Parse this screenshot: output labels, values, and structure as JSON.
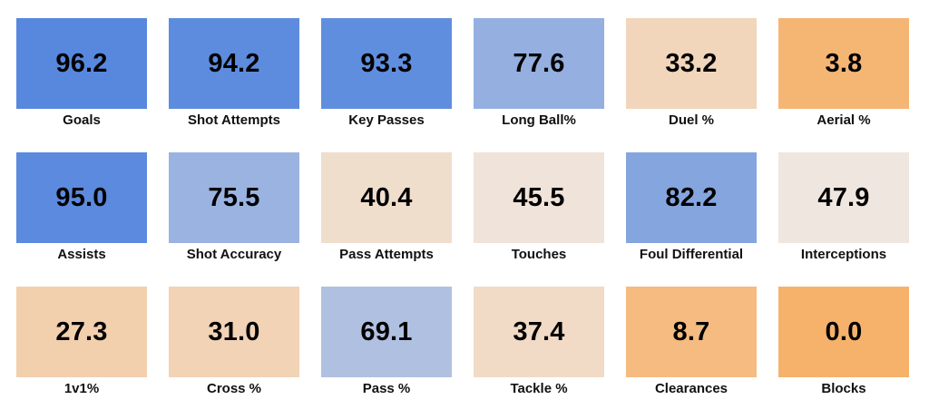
{
  "chart_data": {
    "type": "heatmap",
    "title": "",
    "columns": 6,
    "color_scale": {
      "low": "#f6b26b",
      "mid": "#efe8e4",
      "high": "#4a80dd"
    },
    "cells": [
      {
        "label": "Goals",
        "value": 96.2
      },
      {
        "label": "Shot Attempts",
        "value": 94.2
      },
      {
        "label": "Key Passes",
        "value": 93.3
      },
      {
        "label": "Long Ball%",
        "value": 77.6
      },
      {
        "label": "Duel %",
        "value": 33.2
      },
      {
        "label": "Aerial %",
        "value": 3.8
      },
      {
        "label": "Assists",
        "value": 95.0
      },
      {
        "label": "Shot Accuracy",
        "value": 75.5
      },
      {
        "label": "Pass Attempts",
        "value": 40.4
      },
      {
        "label": "Touches",
        "value": 45.5
      },
      {
        "label": "Foul Differential",
        "value": 82.2
      },
      {
        "label": "Interceptions",
        "value": 47.9
      },
      {
        "label": "1v1%",
        "value": 27.3
      },
      {
        "label": "Cross %",
        "value": 31.0
      },
      {
        "label": "Pass %",
        "value": 69.1
      },
      {
        "label": "Tackle %",
        "value": 37.4
      },
      {
        "label": "Clearances",
        "value": 8.7
      },
      {
        "label": "Blocks",
        "value": 0.0
      }
    ]
  }
}
